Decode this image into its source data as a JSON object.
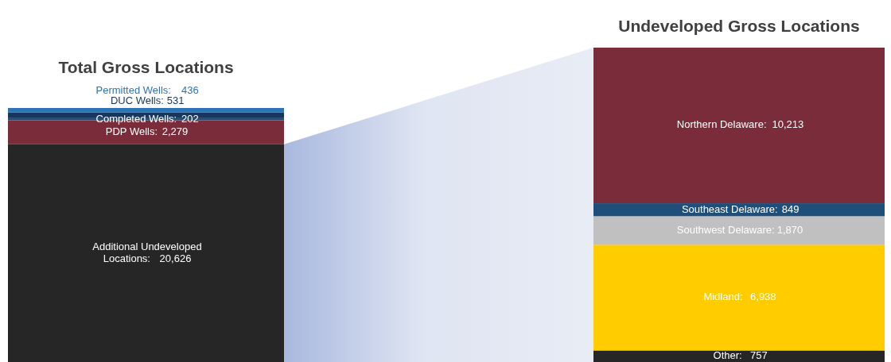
{
  "chart_data": [
    {
      "type": "bar",
      "title": "Total Gross Locations",
      "categories": [
        null
      ],
      "stacked": true,
      "series": [
        {
          "name": "Additional Undeveloped Locations:",
          "color": "#262626",
          "values": [
            20626
          ],
          "value_labels": [
            "20,626"
          ]
        },
        {
          "name": "PDP Wells:",
          "color": "#7b2c3a",
          "values": [
            2279
          ],
          "value_labels": [
            "2,279"
          ]
        },
        {
          "name": "Completed Wells:",
          "color": "#1f4e79",
          "values": [
            202
          ],
          "value_labels": [
            "202"
          ]
        },
        {
          "name": "DUC Wells:",
          "color": "#17375e",
          "values": [
            531
          ],
          "value_labels": [
            "531"
          ]
        },
        {
          "name": "Permitted Wells:",
          "color": "#2e75b6",
          "values": [
            436
          ],
          "value_labels": [
            "436"
          ]
        }
      ]
    },
    {
      "type": "bar",
      "title": "Undeveloped Gross Locations",
      "categories": [
        null
      ],
      "stacked": true,
      "series": [
        {
          "name": "Other:",
          "color": "#262626",
          "values": [
            757
          ],
          "value_labels": [
            "757"
          ]
        },
        {
          "name": "Midland:",
          "color": "#ffcc00",
          "values": [
            6938
          ],
          "value_labels": [
            "6,938"
          ]
        },
        {
          "name": "Southwest Delaware:",
          "color": "#c0c0c0",
          "values": [
            1870
          ],
          "value_labels": [
            "1,870"
          ]
        },
        {
          "name": "Southeast Delaware:",
          "color": "#1f4e79",
          "values": [
            849
          ],
          "value_labels": [
            "849"
          ]
        },
        {
          "name": "Northern Delaware:",
          "color": "#7b2c3a",
          "values": [
            10213
          ],
          "value_labels": [
            "10,213"
          ]
        }
      ]
    }
  ]
}
